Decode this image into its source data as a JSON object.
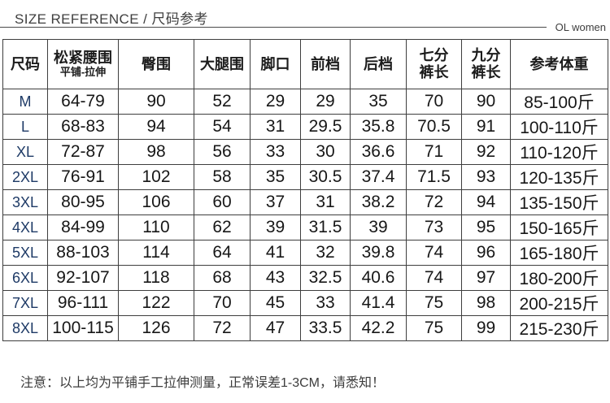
{
  "header": {
    "title": "SIZE REFERENCE / 尺码参考",
    "brand": "OL women"
  },
  "footer": {
    "note": "注意：以上均为平铺手工拉伸测量，正常误差1-3CM，请悉知！"
  },
  "colors": {
    "border": "#3e3e3e",
    "size_label": "#1e3a66",
    "text": "#171717",
    "title_text": "#3e3e3e"
  },
  "chart_data": {
    "type": "table",
    "title": "SIZE REFERENCE / 尺码参考",
    "columns": [
      {
        "id": "size",
        "lines": [
          "尺码"
        ],
        "sub": ""
      },
      {
        "id": "elastic-waist",
        "lines": [
          "松紧腰围"
        ],
        "sub": "平铺-拉伸"
      },
      {
        "id": "hip",
        "lines": [
          "臀围"
        ],
        "sub": ""
      },
      {
        "id": "thigh",
        "lines": [
          "大腿围"
        ],
        "sub": ""
      },
      {
        "id": "leg-opening",
        "lines": [
          "脚口"
        ],
        "sub": ""
      },
      {
        "id": "front-rise",
        "lines": [
          "前档"
        ],
        "sub": ""
      },
      {
        "id": "back-rise",
        "lines": [
          "后档"
        ],
        "sub": ""
      },
      {
        "id": "cropped-pants-length",
        "lines": [
          "七分",
          "裤长"
        ],
        "sub": ""
      },
      {
        "id": "ankle-pants-length",
        "lines": [
          "九分",
          "裤长"
        ],
        "sub": ""
      },
      {
        "id": "reference-weight",
        "lines": [
          "参考体重"
        ],
        "sub": ""
      }
    ],
    "rows": [
      [
        "M",
        "64-79",
        "90",
        "52",
        "29",
        "29",
        "35",
        "70",
        "90",
        "85-100斤"
      ],
      [
        "L",
        "68-83",
        "94",
        "54",
        "31",
        "29.5",
        "35.8",
        "70.5",
        "91",
        "100-110斤"
      ],
      [
        "XL",
        "72-87",
        "98",
        "56",
        "33",
        "30",
        "36.6",
        "71",
        "92",
        "110-120斤"
      ],
      [
        "2XL",
        "76-91",
        "102",
        "58",
        "35",
        "30.5",
        "37.4",
        "71.5",
        "93",
        "120-135斤"
      ],
      [
        "3XL",
        "80-95",
        "106",
        "60",
        "37",
        "31",
        "38.2",
        "72",
        "94",
        "135-150斤"
      ],
      [
        "4XL",
        "84-99",
        "110",
        "62",
        "39",
        "31.5",
        "39",
        "73",
        "95",
        "150-165斤"
      ],
      [
        "5XL",
        "88-103",
        "114",
        "64",
        "41",
        "32",
        "39.8",
        "74",
        "96",
        "165-180斤"
      ],
      [
        "6XL",
        "92-107",
        "118",
        "68",
        "43",
        "32.5",
        "40.6",
        "74",
        "97",
        "180-200斤"
      ],
      [
        "7XL",
        "96-111",
        "122",
        "70",
        "45",
        "33",
        "41.4",
        "75",
        "98",
        "200-215斤"
      ],
      [
        "8XL",
        "100-115",
        "126",
        "72",
        "47",
        "33.5",
        "42.2",
        "75",
        "99",
        "215-230斤"
      ]
    ]
  }
}
